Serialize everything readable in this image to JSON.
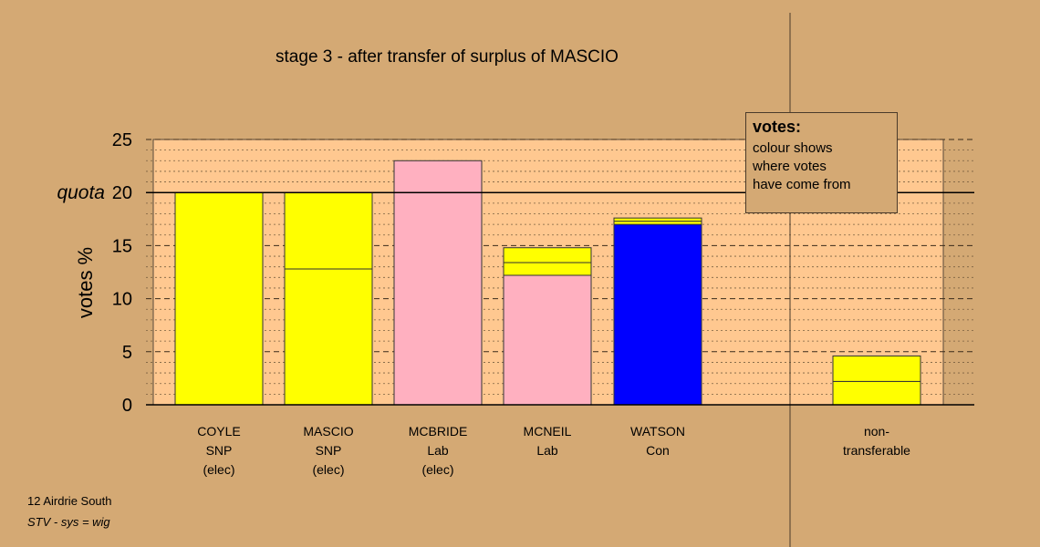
{
  "chart_data": {
    "type": "bar",
    "stacked": true,
    "title": "stage 3 - after transfer of surplus of MASCIO",
    "ylabel": "votes %",
    "ylim": [
      0,
      25
    ],
    "yticks": [
      0,
      5,
      10,
      15,
      20,
      25
    ],
    "quota": 20,
    "quota_label": "quota",
    "minor_gridlines": true,
    "categories": [
      {
        "lines": [
          "COYLE",
          "SNP",
          "(elec)"
        ]
      },
      {
        "lines": [
          "MASCIO",
          "SNP",
          "(elec)"
        ]
      },
      {
        "lines": [
          "MCBRIDE",
          "Lab",
          "(elec)"
        ]
      },
      {
        "lines": [
          "MCNEIL",
          "Lab"
        ]
      },
      {
        "lines": [
          "WATSON",
          "Con"
        ]
      },
      {
        "lines": [
          "non-",
          "transferable"
        ]
      }
    ],
    "bars": [
      {
        "segments": [
          {
            "value": 20.0,
            "color": "#ffff00"
          }
        ]
      },
      {
        "segments": [
          {
            "value": 12.8,
            "color": "#ffff00"
          },
          {
            "value": 7.2,
            "color": "#ffff00"
          }
        ]
      },
      {
        "segments": [
          {
            "value": 23.0,
            "color": "#ffb0c0"
          }
        ]
      },
      {
        "segments": [
          {
            "value": 12.2,
            "color": "#ffb0c0"
          },
          {
            "value": 1.2,
            "color": "#ffff00"
          },
          {
            "value": 1.4,
            "color": "#ffff00"
          }
        ]
      },
      {
        "segments": [
          {
            "value": 17.0,
            "color": "#0000ff"
          },
          {
            "value": 0.3,
            "color": "#ffff00"
          },
          {
            "value": 0.3,
            "color": "#ffff00"
          }
        ]
      },
      {
        "segments": [
          {
            "value": 2.2,
            "color": "#ffff00"
          },
          {
            "value": 2.4,
            "color": "#ffff00"
          }
        ]
      }
    ],
    "legend": {
      "title": "votes:",
      "lines": [
        "colour shows",
        "where votes",
        "have come from"
      ],
      "placement": "top-right"
    }
  },
  "footer": {
    "line1": "12 Airdrie South",
    "line2": "STV - sys = wig"
  },
  "colors": {
    "background": "#d4a974",
    "plot_area": "#ffc890"
  }
}
